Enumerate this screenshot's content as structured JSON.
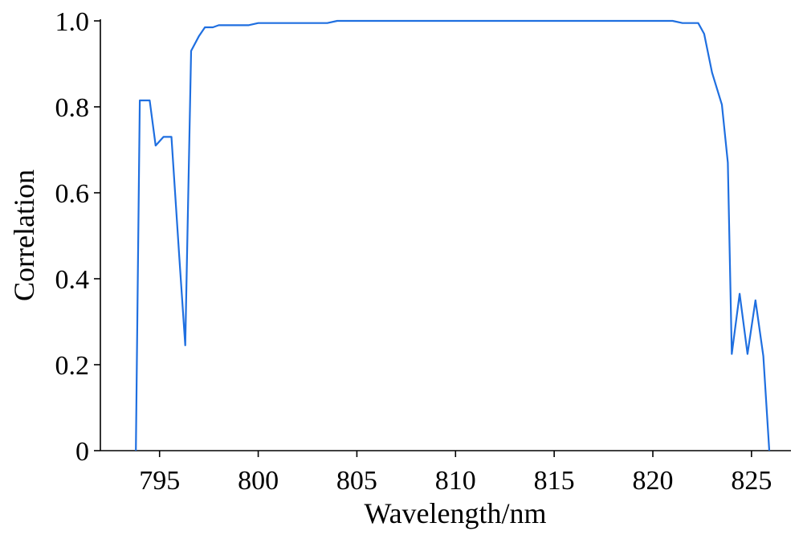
{
  "chart_data": {
    "type": "line",
    "title": "",
    "xlabel": "Wavelength/nm",
    "ylabel": "Correlation",
    "xlim": [
      792,
      827
    ],
    "ylim": [
      0,
      1.0
    ],
    "x_ticks": [
      795,
      800,
      805,
      810,
      815,
      820,
      825
    ],
    "x_tick_labels": [
      "795",
      "800",
      "805",
      "810",
      "815",
      "820",
      "825"
    ],
    "y_ticks": [
      0,
      0.2,
      0.4,
      0.6,
      0.8,
      1.0
    ],
    "y_tick_labels": [
      "0",
      "0.2",
      "0.4",
      "0.6",
      "0.8",
      "1.0"
    ],
    "grid": false,
    "line_color": "#1f6fe0",
    "series": [
      {
        "x": [
          793.8,
          794.0,
          794.5,
          794.8,
          795.2,
          795.6,
          796.0,
          796.3,
          796.6,
          797.0,
          797.3,
          797.7,
          798.0,
          798.5,
          799.0,
          799.5,
          800.0,
          801.0,
          802.0,
          803.0,
          803.5,
          804.0,
          805.0,
          810.0,
          815.0,
          820.0,
          821.0,
          821.5,
          822.0,
          822.3,
          822.6,
          823.0,
          823.5,
          823.8,
          824.0,
          824.4,
          824.8,
          825.2,
          825.6,
          825.9
        ],
        "y": [
          0.0,
          0.815,
          0.815,
          0.71,
          0.73,
          0.73,
          0.45,
          0.245,
          0.93,
          0.965,
          0.985,
          0.985,
          0.99,
          0.99,
          0.99,
          0.99,
          0.995,
          0.995,
          0.995,
          0.995,
          0.995,
          1.0,
          1.0,
          1.0,
          1.0,
          1.0,
          1.0,
          0.995,
          0.995,
          0.995,
          0.97,
          0.88,
          0.805,
          0.67,
          0.225,
          0.365,
          0.225,
          0.35,
          0.22,
          0.0
        ]
      }
    ]
  }
}
